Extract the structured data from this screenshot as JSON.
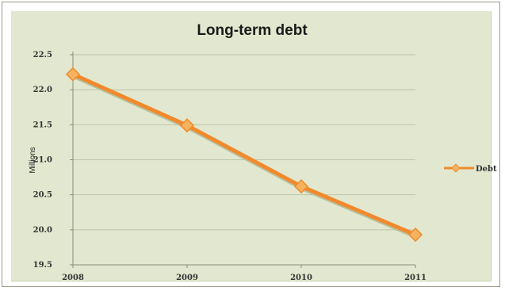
{
  "chart_data": {
    "type": "line",
    "title": "Long-term debt",
    "xlabel": "",
    "ylabel": "Millions",
    "categories": [
      "2008",
      "2009",
      "2010",
      "2011"
    ],
    "series": [
      {
        "name": "Debt",
        "values": [
          22.22,
          21.49,
          20.62,
          19.93
        ],
        "color": "#f08a2c"
      }
    ],
    "ylim": [
      19.5,
      22.5
    ],
    "yticks": [
      "19.5",
      "20.0",
      "20.5",
      "21.0",
      "21.5",
      "22.0",
      "22.5"
    ],
    "grid": true,
    "legend": "right",
    "plot_background": "#e1e8cf",
    "marker_fill": "#f6b35f"
  }
}
